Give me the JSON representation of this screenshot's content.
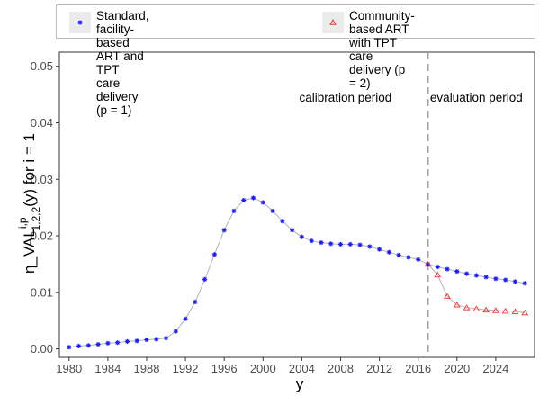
{
  "chart_data": {
    "type": "line",
    "xlabel": "y",
    "ylabel": {
      "main": "η_VAL",
      "subscript": "1,2,2",
      "superscript": "i,p",
      "after": "(y)  for i = 1"
    },
    "xlim": [
      1979,
      2028
    ],
    "ylim": [
      -0.0015,
      0.0525
    ],
    "xticks": [
      1980,
      1984,
      1988,
      1992,
      1996,
      2000,
      2004,
      2008,
      2012,
      2016,
      2020,
      2024
    ],
    "yticks": [
      0.0,
      0.01,
      0.02,
      0.03,
      0.04,
      0.05
    ],
    "ytick_labels": [
      "0.00",
      "0.01",
      "0.02",
      "0.03",
      "0.04",
      "0.05"
    ],
    "grid": false,
    "legend_position": "top",
    "vline": {
      "x": 2017,
      "style": "dashed",
      "color": "#a0a0a0"
    },
    "annotations": [
      {
        "text": "calibration period",
        "x": 2008.5,
        "y": 0.0445
      },
      {
        "text": "evaluation period",
        "x": 2022,
        "y": 0.0445
      }
    ],
    "series": [
      {
        "name": "Standard, facility-based ART and TPT\ncare delivery (p = 1)",
        "marker": "star",
        "color": "#1a1aff",
        "x": [
          1980,
          1981,
          1982,
          1983,
          1984,
          1985,
          1986,
          1987,
          1988,
          1989,
          1990,
          1991,
          1992,
          1993,
          1994,
          1995,
          1996,
          1997,
          1998,
          1999,
          2000,
          2001,
          2002,
          2003,
          2004,
          2005,
          2006,
          2007,
          2008,
          2009,
          2010,
          2011,
          2012,
          2013,
          2014,
          2015,
          2016,
          2017,
          2018,
          2019,
          2020,
          2021,
          2022,
          2023,
          2024,
          2025,
          2026,
          2027
        ],
        "y": [
          0.0003,
          0.0005,
          0.0006,
          0.0008,
          0.001,
          0.0011,
          0.0013,
          0.0014,
          0.0016,
          0.0017,
          0.0019,
          0.0031,
          0.0053,
          0.0083,
          0.0123,
          0.0167,
          0.021,
          0.0244,
          0.0263,
          0.0267,
          0.0259,
          0.0244,
          0.0226,
          0.021,
          0.0198,
          0.0191,
          0.0188,
          0.0186,
          0.0185,
          0.0185,
          0.0184,
          0.0181,
          0.0176,
          0.0171,
          0.0166,
          0.0162,
          0.0158,
          0.015,
          0.0145,
          0.0141,
          0.0137,
          0.0133,
          0.013,
          0.0127,
          0.0124,
          0.0122,
          0.0119,
          0.0116
        ]
      },
      {
        "name": "Community-based ART with TPT\ncare delivery (p = 2)",
        "marker": "triangle",
        "color": "#ff3333",
        "x": [
          2017,
          2018,
          2019,
          2020,
          2021,
          2022,
          2023,
          2024,
          2025,
          2026,
          2027
        ],
        "y": [
          0.015,
          0.0131,
          0.0093,
          0.0078,
          0.0073,
          0.0071,
          0.0069,
          0.0068,
          0.0067,
          0.0066,
          0.0064
        ]
      }
    ]
  }
}
